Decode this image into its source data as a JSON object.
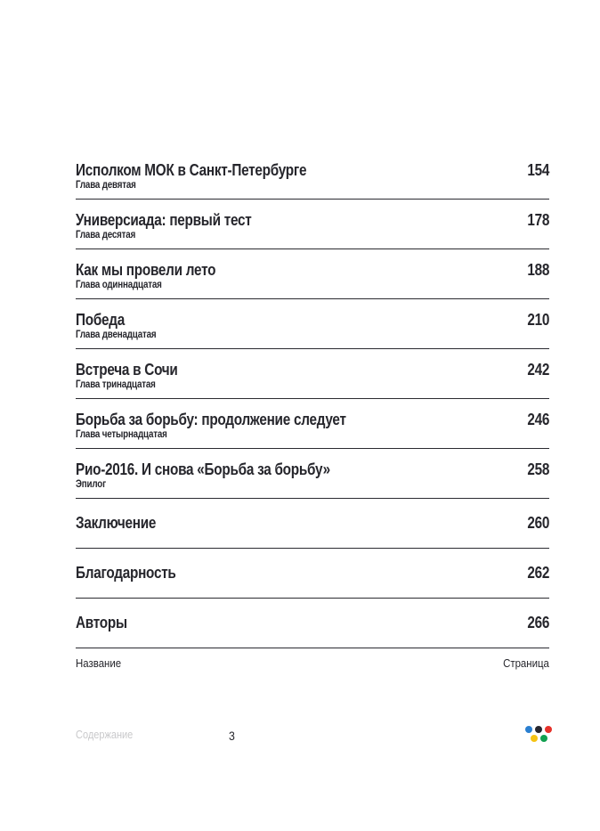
{
  "document": {
    "entries": [
      {
        "title": "Исполком МОК в Санкт-Петербурге",
        "subtitle": "Глава девятая",
        "page": "154"
      },
      {
        "title": "Универсиада: первый тест",
        "subtitle": "Глава десятая",
        "page": "178"
      },
      {
        "title": "Как мы провели лето",
        "subtitle": "Глава одиннадцатая",
        "page": "188"
      },
      {
        "title": "Победа",
        "subtitle": "Глава двенадцатая",
        "page": "210"
      },
      {
        "title": "Встреча в Сочи",
        "subtitle": "Глава тринадцатая",
        "page": "242"
      },
      {
        "title": "Борьба за борьбу: продолжение следует",
        "subtitle": "Глава четырнадцатая",
        "page": "246"
      },
      {
        "title": "Рио-2016. И снова «Борьба за борьбу»",
        "subtitle": "Эпилог",
        "page": "258"
      },
      {
        "title": "Заключение",
        "subtitle": "",
        "page": "260"
      },
      {
        "title": "Благодарность",
        "subtitle": "",
        "page": "262"
      },
      {
        "title": "Авторы",
        "subtitle": "",
        "page": "266"
      }
    ],
    "column_labels": {
      "name": "Название",
      "page": "Страница"
    },
    "footer": {
      "section": "Содержание",
      "page_number": "3"
    },
    "logo": {
      "colors": {
        "blue": "#2A7FD0",
        "black": "#26262E",
        "red": "#E6312A",
        "yellow": "#F5C314",
        "green": "#12A050"
      }
    },
    "colors": {
      "text": "#26262C",
      "rule": "#2B2B31",
      "muted": "#C9C9CB",
      "background": "#FFFFFF"
    }
  }
}
